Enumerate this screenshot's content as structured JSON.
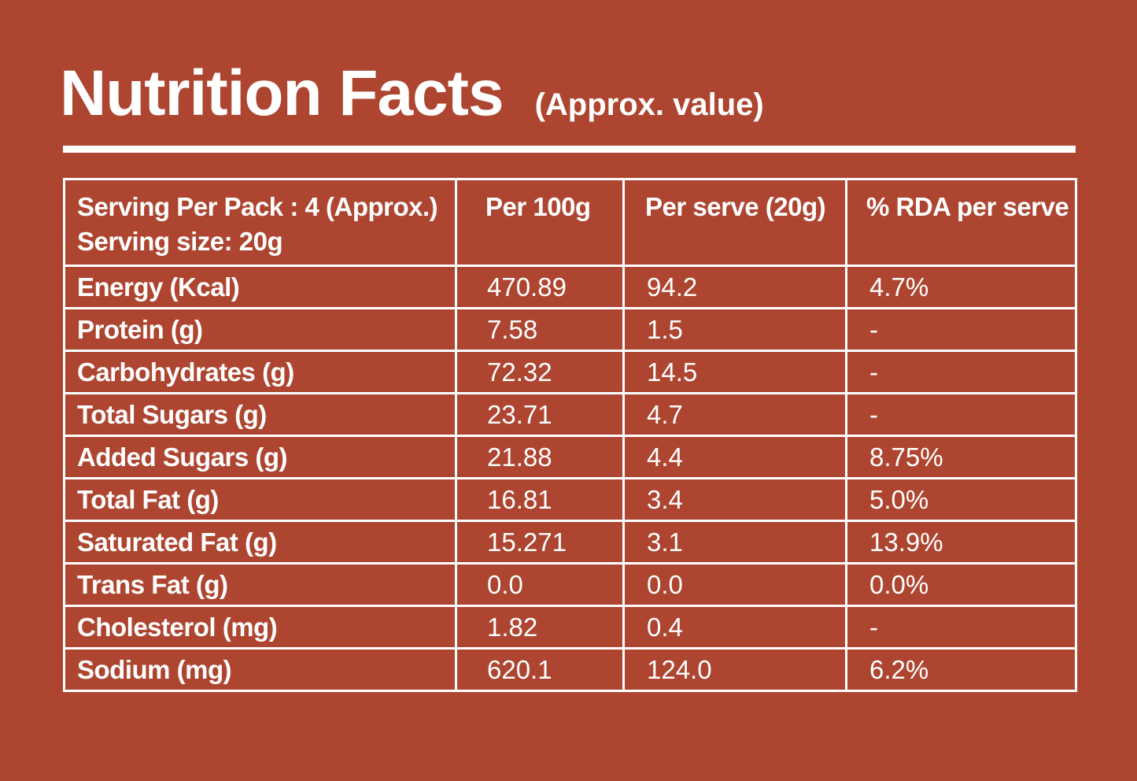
{
  "title": "Nutrition Facts",
  "subtitle": "(Approx. value)",
  "header": {
    "serving_per_pack": "Serving Per Pack : 4 (Approx.)",
    "serving_size": "Serving size: 20g",
    "col_per_100g": "Per 100g",
    "col_per_serve": "Per serve (20g)",
    "col_rda": "% RDA per serve"
  },
  "rows": [
    {
      "nutrient": "Energy (Kcal)",
      "per_100g": "470.89",
      "per_serve": "94.2",
      "rda": "4.7%"
    },
    {
      "nutrient": "Protein (g)",
      "per_100g": "7.58",
      "per_serve": "1.5",
      "rda": "-"
    },
    {
      "nutrient": "Carbohydrates (g)",
      "per_100g": "72.32",
      "per_serve": "14.5",
      "rda": "-"
    },
    {
      "nutrient": "Total Sugars (g)",
      "per_100g": "23.71",
      "per_serve": "4.7",
      "rda": "-"
    },
    {
      "nutrient": "Added Sugars (g)",
      "per_100g": "21.88",
      "per_serve": "4.4",
      "rda": "8.75%"
    },
    {
      "nutrient": "Total Fat (g)",
      "per_100g": "16.81",
      "per_serve": "3.4",
      "rda": "5.0%"
    },
    {
      "nutrient": "Saturated Fat (g)",
      "per_100g": "15.271",
      "per_serve": "3.1",
      "rda": "13.9%"
    },
    {
      "nutrient": "Trans Fat (g)",
      "per_100g": "0.0",
      "per_serve": "0.0",
      "rda": "0.0%"
    },
    {
      "nutrient": "Cholesterol (mg)",
      "per_100g": "1.82",
      "per_serve": "0.4",
      "rda": "-"
    },
    {
      "nutrient": "Sodium (mg)",
      "per_100g": "620.1",
      "per_serve": "124.0",
      "rda": "6.2%"
    }
  ],
  "colors": {
    "background": "#ad4530",
    "foreground": "#ffffff"
  }
}
